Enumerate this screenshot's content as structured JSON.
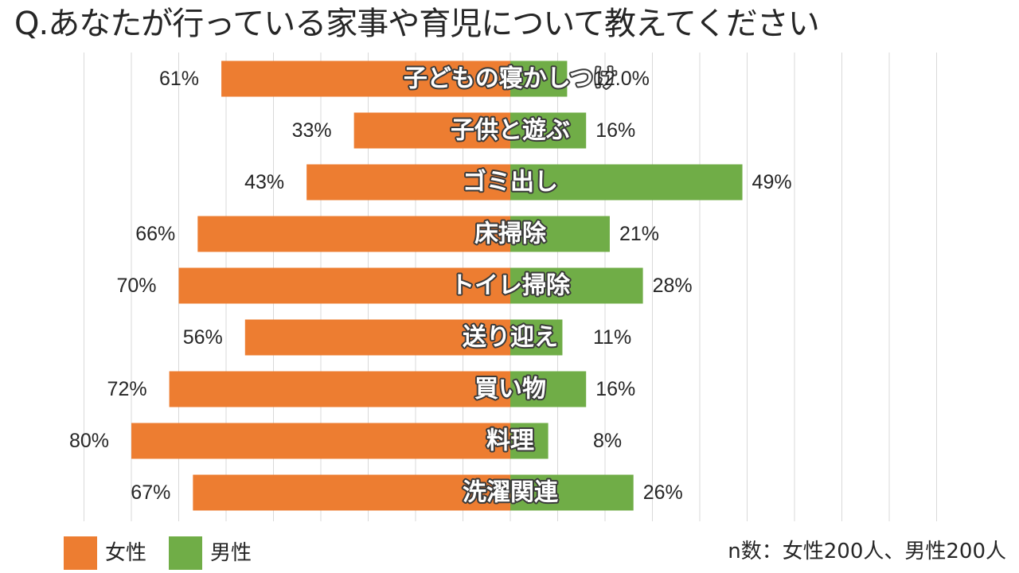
{
  "title": "Q.あなたが行っている家事や育児について教えてください",
  "chart_data": {
    "type": "bar",
    "orientation": "horizontal-diverging",
    "categories": [
      "子どもの寝かしつけ",
      "子供と遊ぶ",
      "ゴミ出し",
      "床掃除",
      "トイレ掃除",
      "送り迎え",
      "買い物",
      "料理",
      "洗濯関連"
    ],
    "series": [
      {
        "name": "女性",
        "color": "#ED7D31",
        "side": "left",
        "values": [
          61,
          33,
          43,
          66,
          70,
          56,
          72,
          80,
          67
        ],
        "labels": [
          "61%",
          "33%",
          "43%",
          "66%",
          "70%",
          "56%",
          "72%",
          "80%",
          "67%"
        ]
      },
      {
        "name": "男性",
        "color": "#70AD47",
        "side": "right",
        "values": [
          12,
          16,
          49,
          21,
          28,
          11,
          16,
          8,
          26
        ],
        "labels": [
          "12.0%",
          "16%",
          "49%",
          "21%",
          "28%",
          "11%",
          "16%",
          "8%",
          "26%"
        ]
      }
    ],
    "xlim": [
      -90,
      90
    ],
    "grid": true,
    "legend_position": "bottom-left"
  },
  "legend": [
    {
      "label": "女性",
      "color": "#ED7D31"
    },
    {
      "label": "男性",
      "color": "#70AD47"
    }
  ],
  "sample_note": "n数：女性200人、男性200人"
}
